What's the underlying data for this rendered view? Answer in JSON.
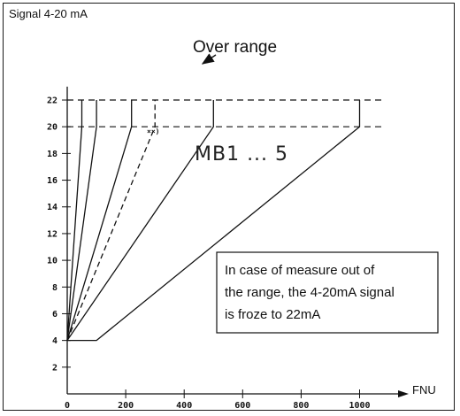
{
  "chart_data": {
    "type": "line",
    "ylabel": "Signal 4-20 mA",
    "xlabel": "FNU",
    "x_ticks": [
      0,
      200,
      400,
      600,
      800,
      1000
    ],
    "y_ticks": [
      2,
      4,
      6,
      8,
      10,
      12,
      14,
      16,
      18,
      20,
      22
    ],
    "xlim": [
      0,
      1100
    ],
    "ylim": [
      0,
      23
    ],
    "grid": false,
    "over_range_label": "Over range",
    "over_range_level": 22,
    "full_scale_level": 20,
    "series_group_label": "MB1 ... 5",
    "footnote_marker": "××)",
    "annotation_lines": [
      "In case of measure out of",
      "the range, the 4-20mA signal",
      "is froze to 22mA"
    ],
    "series": [
      {
        "style": "solid",
        "x": [
          0,
          50,
          50
        ],
        "y": [
          4,
          20,
          22
        ]
      },
      {
        "style": "solid",
        "x": [
          0,
          100,
          100
        ],
        "y": [
          4,
          20,
          22
        ]
      },
      {
        "style": "solid",
        "x": [
          0,
          220,
          220
        ],
        "y": [
          4,
          20,
          22
        ]
      },
      {
        "style": "dashed",
        "x": [
          0,
          300,
          300
        ],
        "y": [
          4,
          20,
          22
        ]
      },
      {
        "style": "solid",
        "x": [
          0,
          500,
          500
        ],
        "y": [
          4,
          20,
          22
        ]
      },
      {
        "style": "solid",
        "x": [
          0,
          100,
          1000,
          1000
        ],
        "y": [
          4,
          4,
          20,
          22
        ]
      }
    ]
  }
}
